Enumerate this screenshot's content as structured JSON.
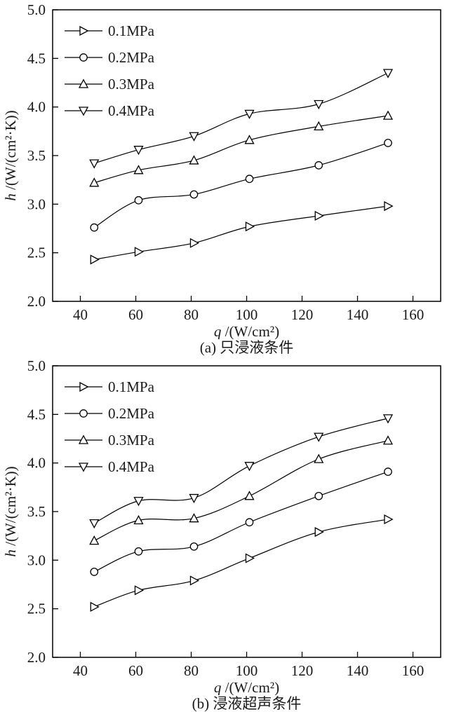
{
  "chart_data": [
    {
      "type": "line",
      "caption": "(a) 只浸液条件",
      "xlabel": "q /(W/cm²)",
      "ylabel": "h /(W/(cm²·K))",
      "xlim": [
        30,
        170
      ],
      "ylim": [
        2.0,
        5.0
      ],
      "xticks": [
        40,
        60,
        80,
        100,
        120,
        140,
        160
      ],
      "yticks": [
        2.0,
        2.5,
        3.0,
        3.5,
        4.0,
        4.5,
        5.0
      ],
      "grid": false,
      "legend_position": "top-left",
      "line_color": "#000000",
      "marker_fill": "#ffffff",
      "x": [
        45,
        61,
        81,
        101,
        126,
        151
      ],
      "series": [
        {
          "name": "0.1MPa",
          "marker": "triangle-right",
          "values": [
            2.43,
            2.51,
            2.6,
            2.77,
            2.88,
            2.98
          ]
        },
        {
          "name": "0.2MPa",
          "marker": "circle",
          "values": [
            2.76,
            3.04,
            3.1,
            3.26,
            3.4,
            3.63
          ]
        },
        {
          "name": "0.3MPa",
          "marker": "triangle-up",
          "values": [
            3.22,
            3.35,
            3.45,
            3.66,
            3.8,
            3.91
          ]
        },
        {
          "name": "0.4MPa",
          "marker": "triangle-down",
          "values": [
            3.42,
            3.56,
            3.7,
            3.93,
            4.03,
            4.35
          ]
        }
      ]
    },
    {
      "type": "line",
      "caption": "(b) 浸液超声条件",
      "xlabel": "q /(W/cm²)",
      "ylabel": "h /(W/(cm²·K))",
      "xlim": [
        30,
        170
      ],
      "ylim": [
        2.0,
        5.0
      ],
      "xticks": [
        40,
        60,
        80,
        100,
        120,
        140,
        160
      ],
      "yticks": [
        2.0,
        2.5,
        3.0,
        3.5,
        4.0,
        4.5,
        5.0
      ],
      "grid": false,
      "legend_position": "top-left",
      "line_color": "#000000",
      "marker_fill": "#ffffff",
      "x": [
        45,
        61,
        81,
        101,
        126,
        151
      ],
      "series": [
        {
          "name": "0.1MPa",
          "marker": "triangle-right",
          "values": [
            2.52,
            2.69,
            2.79,
            3.02,
            3.29,
            3.42
          ]
        },
        {
          "name": "0.2MPa",
          "marker": "circle",
          "values": [
            2.88,
            3.09,
            3.14,
            3.39,
            3.66,
            3.91
          ]
        },
        {
          "name": "0.3MPa",
          "marker": "triangle-up",
          "values": [
            3.2,
            3.41,
            3.43,
            3.66,
            4.04,
            4.23
          ]
        },
        {
          "name": "0.4MPa",
          "marker": "triangle-down",
          "values": [
            3.38,
            3.61,
            3.64,
            3.97,
            4.27,
            4.46
          ]
        }
      ]
    }
  ]
}
